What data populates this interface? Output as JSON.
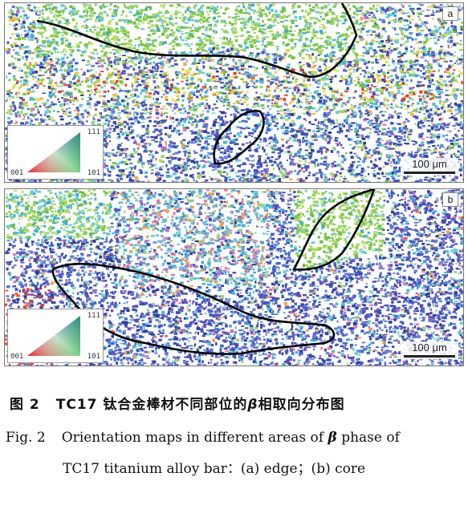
{
  "figure": {
    "panels": [
      {
        "id": "a",
        "letter": "a",
        "ipf_key": {
          "top_right": "111",
          "bottom_left": "001",
          "bottom_right": "101"
        },
        "scale_bar": "100 μm"
      },
      {
        "id": "b",
        "letter": "b",
        "ipf_key": {
          "top_right": "111",
          "bottom_left": "001",
          "bottom_right": "101"
        },
        "scale_bar": "100 μm"
      }
    ],
    "colors": {
      "boundary": "#000000",
      "grain_blue": "#3d52b8",
      "grain_green": "#86c84a",
      "grain_cyan": "#49b6d6",
      "grain_red": "#e03a2a",
      "grain_yellow": "#e2d23a"
    }
  },
  "caption": {
    "zh_label": "图 2",
    "zh_pre": "TC17 钛合金棒材不同部位的",
    "zh_beta": "β",
    "zh_post": "相取向分布图",
    "en_label": "Fig. 2",
    "en_pre": "Orientation maps in different areas of",
    "en_beta": "β",
    "en_post": "phase of",
    "en_line2": "TC17 titanium alloy bar：(a) edge；(b) core"
  }
}
